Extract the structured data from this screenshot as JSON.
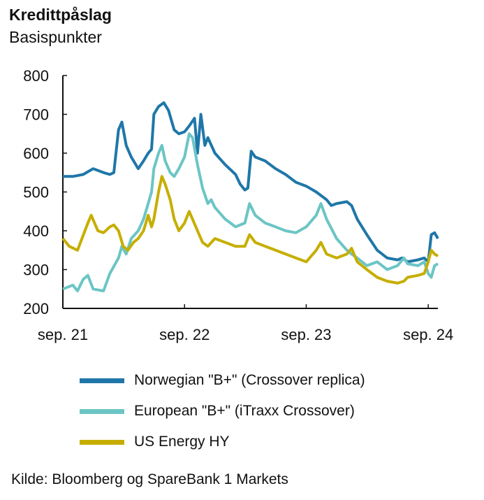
{
  "chart_data": {
    "type": "line",
    "title": "Kredittpåslag",
    "subtitle": "Basispunkter",
    "ylim": [
      200,
      800
    ],
    "yticks": [
      200,
      300,
      400,
      500,
      600,
      700,
      800
    ],
    "xlim": [
      "2021-09-01",
      "2024-09-30"
    ],
    "xticks": [
      {
        "label": "sep. 21",
        "date": "2021-09-01"
      },
      {
        "label": "sep. 22",
        "date": "2022-09-01"
      },
      {
        "label": "sep. 23",
        "date": "2023-09-01"
      },
      {
        "label": "sep. 24",
        "date": "2024-09-01"
      }
    ],
    "grid": false,
    "legend_position": "bottom",
    "source": "Kilde: Bloomberg og SpareBank 1 Markets",
    "series": [
      {
        "name": "Norwegian \"B+\" (Crossover replica)",
        "color": "#1f77a8",
        "points": [
          [
            "2021-09-01",
            540
          ],
          [
            "2021-10-01",
            540
          ],
          [
            "2021-11-01",
            545
          ],
          [
            "2021-12-01",
            560
          ],
          [
            "2022-01-01",
            550
          ],
          [
            "2022-01-20",
            545
          ],
          [
            "2022-02-01",
            550
          ],
          [
            "2022-02-15",
            660
          ],
          [
            "2022-02-25",
            680
          ],
          [
            "2022-03-10",
            620
          ],
          [
            "2022-03-25",
            590
          ],
          [
            "2022-04-15",
            560
          ],
          [
            "2022-05-01",
            580
          ],
          [
            "2022-05-15",
            600
          ],
          [
            "2022-05-25",
            610
          ],
          [
            "2022-06-01",
            700
          ],
          [
            "2022-06-15",
            720
          ],
          [
            "2022-07-01",
            730
          ],
          [
            "2022-07-15",
            710
          ],
          [
            "2022-08-01",
            660
          ],
          [
            "2022-08-15",
            650
          ],
          [
            "2022-09-01",
            655
          ],
          [
            "2022-09-15",
            670
          ],
          [
            "2022-10-01",
            690
          ],
          [
            "2022-10-10",
            600
          ],
          [
            "2022-10-20",
            700
          ],
          [
            "2022-11-01",
            620
          ],
          [
            "2022-11-10",
            640
          ],
          [
            "2022-12-01",
            600
          ],
          [
            "2023-01-01",
            570
          ],
          [
            "2023-02-01",
            545
          ],
          [
            "2023-02-15",
            520
          ],
          [
            "2023-03-01",
            505
          ],
          [
            "2023-03-10",
            510
          ],
          [
            "2023-03-20",
            605
          ],
          [
            "2023-04-01",
            590
          ],
          [
            "2023-05-01",
            580
          ],
          [
            "2023-06-01",
            560
          ],
          [
            "2023-07-01",
            545
          ],
          [
            "2023-08-01",
            525
          ],
          [
            "2023-09-01",
            515
          ],
          [
            "2023-10-01",
            500
          ],
          [
            "2023-11-01",
            480
          ],
          [
            "2023-11-15",
            465
          ],
          [
            "2023-12-01",
            470
          ],
          [
            "2024-01-01",
            475
          ],
          [
            "2024-01-15",
            465
          ],
          [
            "2024-02-01",
            430
          ],
          [
            "2024-03-01",
            390
          ],
          [
            "2024-04-01",
            350
          ],
          [
            "2024-05-01",
            330
          ],
          [
            "2024-06-01",
            325
          ],
          [
            "2024-06-15",
            330
          ],
          [
            "2024-07-01",
            320
          ],
          [
            "2024-08-01",
            325
          ],
          [
            "2024-08-20",
            330
          ],
          [
            "2024-09-01",
            320
          ],
          [
            "2024-09-10",
            390
          ],
          [
            "2024-09-20",
            395
          ],
          [
            "2024-09-30",
            380
          ]
        ]
      },
      {
        "name": "European \"B+\" (iTraxx Crossover)",
        "color": "#6cc5c5",
        "points": [
          [
            "2021-09-01",
            250
          ],
          [
            "2021-10-01",
            260
          ],
          [
            "2021-10-15",
            245
          ],
          [
            "2021-11-01",
            275
          ],
          [
            "2021-11-15",
            285
          ],
          [
            "2021-12-01",
            250
          ],
          [
            "2022-01-01",
            245
          ],
          [
            "2022-01-20",
            290
          ],
          [
            "2022-02-15",
            330
          ],
          [
            "2022-02-25",
            360
          ],
          [
            "2022-03-10",
            340
          ],
          [
            "2022-03-25",
            380
          ],
          [
            "2022-04-15",
            400
          ],
          [
            "2022-05-01",
            430
          ],
          [
            "2022-05-15",
            470
          ],
          [
            "2022-05-25",
            500
          ],
          [
            "2022-06-01",
            560
          ],
          [
            "2022-06-15",
            600
          ],
          [
            "2022-06-25",
            620
          ],
          [
            "2022-07-05",
            580
          ],
          [
            "2022-07-20",
            550
          ],
          [
            "2022-08-01",
            540
          ],
          [
            "2022-08-15",
            560
          ],
          [
            "2022-09-01",
            590
          ],
          [
            "2022-09-15",
            650
          ],
          [
            "2022-09-25",
            640
          ],
          [
            "2022-10-10",
            570
          ],
          [
            "2022-10-25",
            510
          ],
          [
            "2022-11-10",
            470
          ],
          [
            "2022-11-20",
            480
          ],
          [
            "2022-12-01",
            460
          ],
          [
            "2023-01-01",
            430
          ],
          [
            "2023-02-01",
            410
          ],
          [
            "2023-03-01",
            420
          ],
          [
            "2023-03-15",
            470
          ],
          [
            "2023-04-01",
            440
          ],
          [
            "2023-05-01",
            420
          ],
          [
            "2023-06-01",
            410
          ],
          [
            "2023-07-01",
            400
          ],
          [
            "2023-08-01",
            395
          ],
          [
            "2023-09-01",
            410
          ],
          [
            "2023-10-01",
            440
          ],
          [
            "2023-10-15",
            470
          ],
          [
            "2023-11-01",
            430
          ],
          [
            "2023-12-01",
            380
          ],
          [
            "2024-01-01",
            350
          ],
          [
            "2024-01-15",
            340
          ],
          [
            "2024-02-01",
            330
          ],
          [
            "2024-03-01",
            310
          ],
          [
            "2024-04-01",
            320
          ],
          [
            "2024-05-01",
            300
          ],
          [
            "2024-06-01",
            310
          ],
          [
            "2024-06-20",
            330
          ],
          [
            "2024-07-01",
            315
          ],
          [
            "2024-08-01",
            310
          ],
          [
            "2024-08-20",
            320
          ],
          [
            "2024-09-01",
            290
          ],
          [
            "2024-09-10",
            280
          ],
          [
            "2024-09-20",
            310
          ],
          [
            "2024-09-30",
            315
          ]
        ]
      },
      {
        "name": "US Energy HY",
        "color": "#c6ae00",
        "points": [
          [
            "2021-09-01",
            380
          ],
          [
            "2021-09-20",
            360
          ],
          [
            "2021-10-15",
            350
          ],
          [
            "2021-11-15",
            420
          ],
          [
            "2021-11-25",
            440
          ],
          [
            "2021-12-15",
            400
          ],
          [
            "2022-01-01",
            395
          ],
          [
            "2022-01-20",
            410
          ],
          [
            "2022-02-01",
            415
          ],
          [
            "2022-02-15",
            400
          ],
          [
            "2022-03-01",
            360
          ],
          [
            "2022-03-15",
            350
          ],
          [
            "2022-04-01",
            370
          ],
          [
            "2022-04-15",
            380
          ],
          [
            "2022-05-01",
            400
          ],
          [
            "2022-05-15",
            440
          ],
          [
            "2022-05-25",
            410
          ],
          [
            "2022-06-01",
            430
          ],
          [
            "2022-06-15",
            500
          ],
          [
            "2022-06-25",
            540
          ],
          [
            "2022-07-05",
            520
          ],
          [
            "2022-07-20",
            480
          ],
          [
            "2022-08-01",
            430
          ],
          [
            "2022-08-15",
            400
          ],
          [
            "2022-09-01",
            420
          ],
          [
            "2022-09-15",
            450
          ],
          [
            "2022-09-25",
            430
          ],
          [
            "2022-10-10",
            400
          ],
          [
            "2022-10-25",
            370
          ],
          [
            "2022-11-10",
            360
          ],
          [
            "2022-12-01",
            380
          ],
          [
            "2023-01-01",
            370
          ],
          [
            "2023-02-01",
            360
          ],
          [
            "2023-03-01",
            360
          ],
          [
            "2023-03-15",
            390
          ],
          [
            "2023-04-01",
            370
          ],
          [
            "2023-05-01",
            360
          ],
          [
            "2023-06-01",
            350
          ],
          [
            "2023-07-01",
            340
          ],
          [
            "2023-08-01",
            330
          ],
          [
            "2023-09-01",
            320
          ],
          [
            "2023-10-01",
            350
          ],
          [
            "2023-10-15",
            370
          ],
          [
            "2023-11-01",
            340
          ],
          [
            "2023-12-01",
            330
          ],
          [
            "2024-01-01",
            340
          ],
          [
            "2024-01-15",
            355
          ],
          [
            "2024-02-01",
            320
          ],
          [
            "2024-03-01",
            300
          ],
          [
            "2024-04-01",
            280
          ],
          [
            "2024-05-01",
            270
          ],
          [
            "2024-06-01",
            265
          ],
          [
            "2024-06-20",
            270
          ],
          [
            "2024-07-01",
            280
          ],
          [
            "2024-08-01",
            285
          ],
          [
            "2024-08-20",
            290
          ],
          [
            "2024-09-01",
            320
          ],
          [
            "2024-09-10",
            350
          ],
          [
            "2024-09-20",
            340
          ],
          [
            "2024-09-30",
            335
          ]
        ]
      }
    ]
  }
}
